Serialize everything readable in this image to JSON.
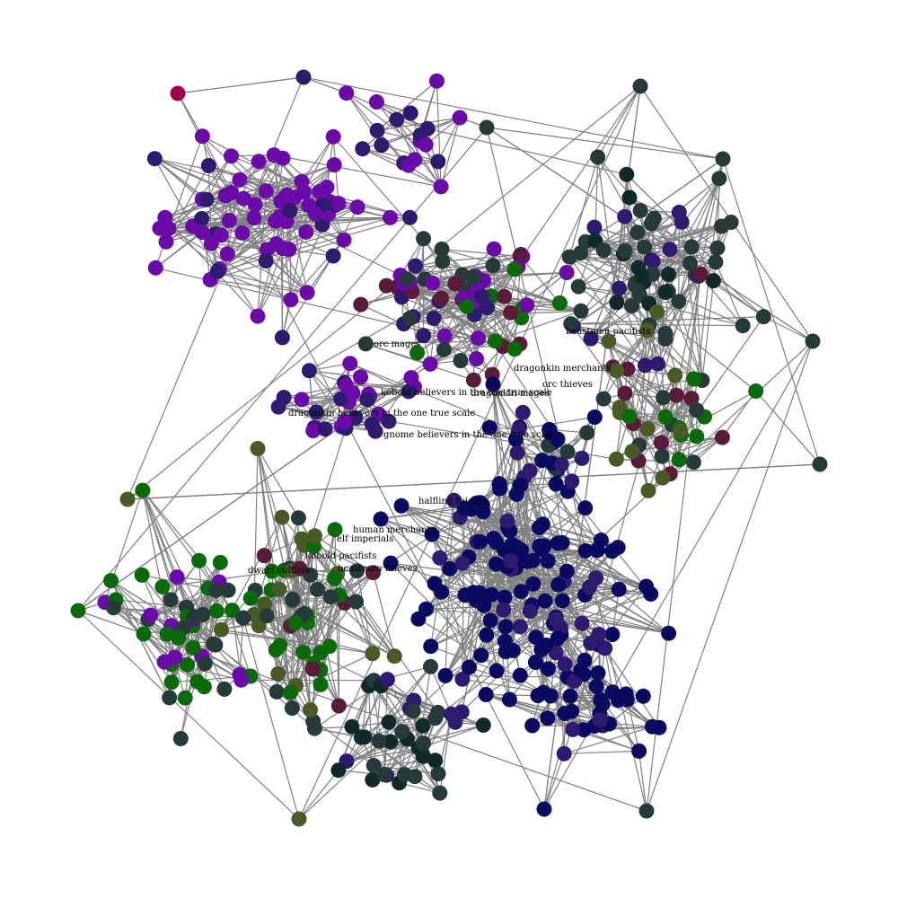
{
  "diagram": {
    "type": "network-graph",
    "edge_color": "#808080",
    "node_palette": {
      "purple": "#6a0aa8",
      "indigo": "#2e1a6e",
      "navy": "#0a0a60",
      "slate": "#263a3a",
      "green": "#0a6a0a",
      "olive": "#4a5a26",
      "maroon": "#5a1a3a",
      "crimson": "#a0004a",
      "dark": "#102a2a"
    },
    "labels": [
      {
        "id": "orc-mages",
        "text": "orc mages"
      },
      {
        "id": "beastmen-pacifists",
        "text": "beastmen pacifists"
      },
      {
        "id": "dragonkin-merchants",
        "text": "dragonkin merchants"
      },
      {
        "id": "orc-thieves",
        "text": "orc thieves"
      },
      {
        "id": "kobold-believers",
        "text": "kobold believers in the one true scale"
      },
      {
        "id": "dragonkin-mages",
        "text": "dragonkin mages"
      },
      {
        "id": "dragonkin-believers",
        "text": "dragonkin believers in the one true scale"
      },
      {
        "id": "gnome-believers",
        "text": "gnome believers in the one true scale"
      },
      {
        "id": "halfling-thieves",
        "text": "halfling thieves"
      },
      {
        "id": "human-merchants",
        "text": "human merchants"
      },
      {
        "id": "elf-imperials",
        "text": "elf imperials"
      },
      {
        "id": "kobold-pacifists",
        "text": "kobold pacifists"
      },
      {
        "id": "dwarf-cultists",
        "text": "dwarf cultists"
      },
      {
        "id": "beastmen-thieves",
        "text": "beastmen thieves"
      }
    ]
  }
}
